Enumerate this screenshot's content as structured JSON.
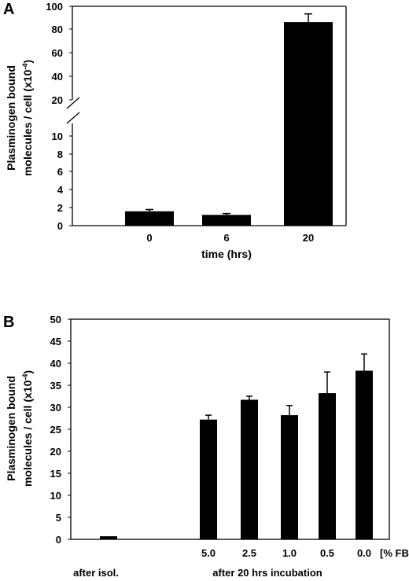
{
  "chart_data": [
    {
      "panel_label": "A",
      "type": "bar",
      "categories": [
        "0",
        "6",
        "20"
      ],
      "values": [
        1.6,
        1.2,
        86.5
      ],
      "errors": [
        0.2,
        0.15,
        7.0
      ],
      "xlabel": "time (hrs)",
      "ylabel_line1": "Plasminogen bound",
      "ylabel_line2": "molecules / cell (x10",
      "ylabel_exp": "-4",
      "ylabel_close": ")",
      "axis_break": true,
      "ylim_lower": [
        0,
        11
      ],
      "ylim_upper": [
        15,
        100
      ],
      "yticks_lower": [
        "0",
        "2",
        "4",
        "6",
        "8",
        "10"
      ],
      "yticks_upper": [
        "20",
        "40",
        "60",
        "80",
        "100"
      ],
      "bar_color": "#000000",
      "grid": false
    },
    {
      "panel_label": "B",
      "type": "bar",
      "categories": [
        "",
        "5.0",
        "2.5",
        "1.0",
        "0.5",
        "0.0"
      ],
      "values": [
        0.7,
        27.2,
        31.7,
        28.2,
        33.2,
        38.3
      ],
      "errors": [
        0.0,
        1.0,
        0.8,
        2.2,
        4.8,
        3.8
      ],
      "category_unit_label": "[% FBS]",
      "group_labels": [
        "after isol.",
        "after 20 hrs  incubation"
      ],
      "ylabel_line1": "Plasminogen bound",
      "ylabel_line2": "molecules / cell (x10",
      "ylabel_exp": "-4",
      "ylabel_close": ")",
      "ylim": [
        0,
        50
      ],
      "yticks": [
        "0",
        "5",
        "10",
        "15",
        "20",
        "25",
        "30",
        "35",
        "40",
        "45",
        "50"
      ],
      "bar_color": "#000000",
      "grid": false
    }
  ]
}
